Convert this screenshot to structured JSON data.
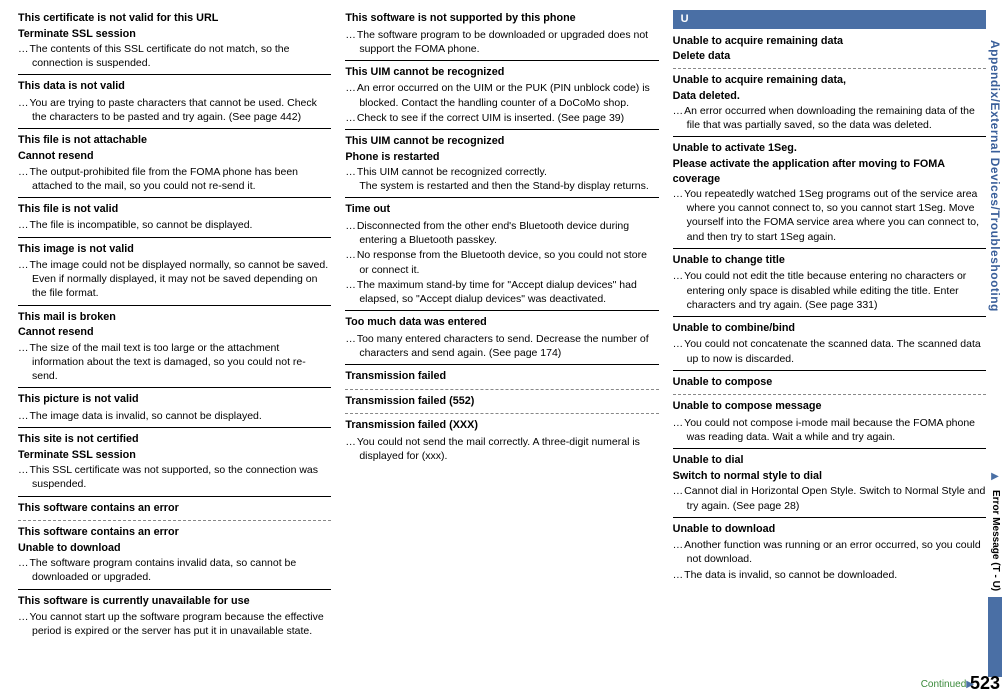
{
  "pageNumber": "523",
  "continuedLabel": "Continued",
  "sideTab": {
    "section": "Appendix/External Devices/Troubleshooting",
    "subsection": "Error Message (T - U)"
  },
  "letterHeader": "U",
  "col1": [
    {
      "titles": [
        "This certificate is not valid for this URL",
        "Terminate SSL session"
      ],
      "descs": [
        "The contents of this SSL certificate do not match, so the connection is suspended."
      ],
      "after": "solid"
    },
    {
      "titles": [
        "This data is not valid"
      ],
      "descs": [
        "You are trying to paste characters that cannot be used. Check the characters to be pasted and try again. (See page 442)"
      ],
      "after": "solid"
    },
    {
      "titles": [
        "This file is not attachable",
        "Cannot resend"
      ],
      "descs": [
        "The output-prohibited file from the FOMA phone has been attached to the mail, so you could not re-send it."
      ],
      "after": "solid"
    },
    {
      "titles": [
        "This file is not valid"
      ],
      "descs": [
        "The file is incompatible, so cannot be displayed."
      ],
      "after": "solid"
    },
    {
      "titles": [
        "This image is not valid"
      ],
      "descs": [
        "The image could not be displayed normally, so cannot be saved. Even if normally displayed, it may not be saved depending on the file format."
      ],
      "after": "solid"
    },
    {
      "titles": [
        "This mail is broken",
        "Cannot resend"
      ],
      "descs": [
        "The size of the mail text is too large or the attachment information about the text is damaged, so you could not re-send."
      ],
      "after": "solid"
    },
    {
      "titles": [
        "This picture is not valid"
      ],
      "descs": [
        "The image data is invalid, so cannot be displayed."
      ],
      "after": "solid"
    },
    {
      "titles": [
        "This site is not certified",
        "Terminate SSL session"
      ],
      "descs": [
        "This SSL certificate was not supported, so the connection was suspended."
      ],
      "after": "solid"
    },
    {
      "titles": [
        "This software contains an error"
      ],
      "descs": [],
      "after": "dashed"
    },
    {
      "titles": [
        "This software contains an error",
        "Unable to download"
      ],
      "descs": [
        "The software program contains invalid data, so cannot be downloaded or upgraded."
      ],
      "after": "solid"
    },
    {
      "titles": [
        "This software is currently unavailable for use"
      ],
      "descs": [
        "You cannot start up the software program because the effective period is expired or the server has put it in unavailable state."
      ],
      "after": "none"
    }
  ],
  "col2": [
    {
      "titles": [
        "This software is not supported by this phone"
      ],
      "descs": [
        "The software program to be downloaded or upgraded does not support the FOMA phone."
      ],
      "after": "solid"
    },
    {
      "titles": [
        "This UIM cannot be recognized"
      ],
      "descs": [
        "An error occurred on the UIM or the PUK (PIN unblock code) is blocked. Contact the handling counter of a DoCoMo shop.",
        "Check to see if the correct UIM is inserted. (See page 39)"
      ],
      "after": "solid"
    },
    {
      "titles": [
        "This UIM cannot be recognized",
        "Phone is restarted"
      ],
      "descs": [
        "This UIM cannot be recognized correctly."
      ],
      "cont": [
        "The system is restarted and then the Stand-by display returns."
      ],
      "after": "solid"
    },
    {
      "titles": [
        "Time out"
      ],
      "descs": [
        "Disconnected from the other end's Bluetooth device during entering a Bluetooth passkey.",
        "No response from the Bluetooth device, so you could not store or connect it.",
        "The maximum stand-by time for \"Accept dialup devices\" had elapsed, so \"Accept dialup devices\" was deactivated."
      ],
      "after": "solid"
    },
    {
      "titles": [
        "Too much data was entered"
      ],
      "descs": [
        "Too many entered characters to send. Decrease the number of characters and send again. (See page 174)"
      ],
      "after": "solid"
    },
    {
      "titles": [
        "Transmission failed"
      ],
      "descs": [],
      "after": "dashed"
    },
    {
      "titles": [
        "Transmission failed (552)"
      ],
      "descs": [],
      "after": "dashed"
    },
    {
      "titles": [
        "Transmission failed (XXX)"
      ],
      "descs": [
        "You could not send the mail correctly. A three-digit numeral is displayed for (xxx)."
      ],
      "after": "none"
    }
  ],
  "col3": [
    {
      "titles": [
        "Unable to acquire remaining data",
        "Delete data"
      ],
      "descs": [],
      "after": "dashed"
    },
    {
      "titles": [
        "Unable to acquire remaining data,",
        "Data deleted."
      ],
      "descs": [
        "An error occurred when downloading the remaining data of the file that was partially saved, so the data was deleted."
      ],
      "after": "solid"
    },
    {
      "titles": [
        "Unable to activate 1Seg.",
        "Please activate the application after moving to FOMA coverage"
      ],
      "descs": [
        "You repeatedly watched 1Seg programs out of the service area where you cannot connect to, so you cannot start 1Seg. Move yourself into the FOMA service area where you can connect to, and then try to start 1Seg again."
      ],
      "after": "solid"
    },
    {
      "titles": [
        "Unable to change title"
      ],
      "descs": [
        "You could not edit the title because entering no characters or entering only space is disabled while editing the title. Enter characters and try again. (See page 331)"
      ],
      "after": "solid"
    },
    {
      "titles": [
        "Unable to combine/bind"
      ],
      "descs": [
        "You could not concatenate the scanned data. The scanned data up to now is discarded."
      ],
      "after": "solid"
    },
    {
      "titles": [
        "Unable to compose"
      ],
      "descs": [],
      "after": "dashed"
    },
    {
      "titles": [
        "Unable to compose message"
      ],
      "descs": [
        "You could not compose i-mode mail because the FOMA phone was reading data. Wait a while and try again."
      ],
      "after": "solid"
    },
    {
      "titles": [
        "Unable to dial",
        "Switch to normal style to dial"
      ],
      "descs": [
        "Cannot dial in Horizontal Open Style. Switch to Normal Style and try again. (See page 28)"
      ],
      "after": "solid"
    },
    {
      "titles": [
        "Unable to download"
      ],
      "descs": [
        "Another function was running or an error occurred, so you could not download.",
        "The data is invalid, so cannot be downloaded."
      ],
      "after": "none"
    }
  ]
}
